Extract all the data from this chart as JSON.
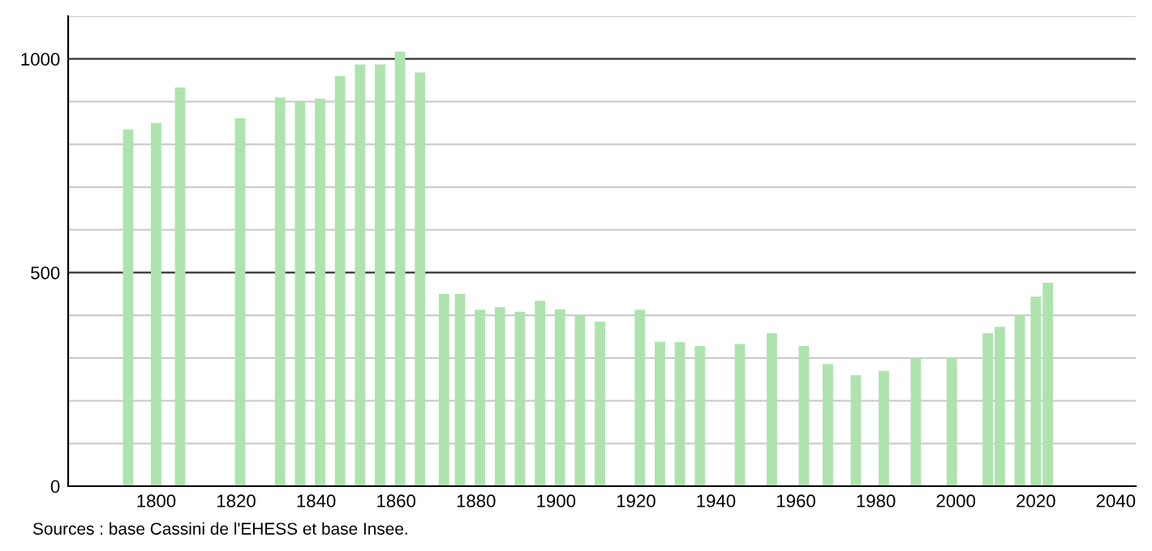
{
  "chart_data": {
    "type": "bar",
    "x": [
      1793,
      1800,
      1806,
      1821,
      1831,
      1836,
      1841,
      1846,
      1851,
      1856,
      1861,
      1866,
      1872,
      1876,
      1881,
      1886,
      1891,
      1896,
      1901,
      1906,
      1911,
      1921,
      1926,
      1931,
      1936,
      1946,
      1954,
      1962,
      1968,
      1975,
      1982,
      1990,
      1999,
      2008,
      2011,
      2016,
      2020,
      2023
    ],
    "values": [
      835,
      850,
      933,
      861,
      910,
      901,
      907,
      960,
      987,
      987,
      1017,
      968,
      450,
      450,
      413,
      419,
      408,
      434,
      414,
      399,
      385,
      413,
      338,
      337,
      328,
      333,
      358,
      328,
      286,
      260,
      270,
      298,
      300,
      358,
      373,
      399,
      444,
      476
    ],
    "color": "#aee3ae",
    "xlim": [
      1778,
      2045
    ],
    "xticks": [
      1800,
      1820,
      1840,
      1860,
      1880,
      1900,
      1920,
      1940,
      1960,
      1980,
      2000,
      2020,
      2040
    ],
    "ylim": [
      0,
      1100
    ],
    "yticks": [
      0,
      {
        "value": 100,
        "label": null
      },
      {
        "value": 200,
        "label": null
      },
      {
        "value": 300,
        "label": null
      },
      {
        "value": 400,
        "label": null
      },
      500,
      {
        "value": 600,
        "label": null
      },
      {
        "value": 700,
        "label": null
      },
      {
        "value": 800,
        "label": null
      },
      {
        "value": 900,
        "label": null
      },
      1000,
      {
        "value": 1100,
        "label": null
      }
    ],
    "grid": "y",
    "annotations": [
      "Sources : base Cassini de l'EHESS et base Insee."
    ]
  }
}
